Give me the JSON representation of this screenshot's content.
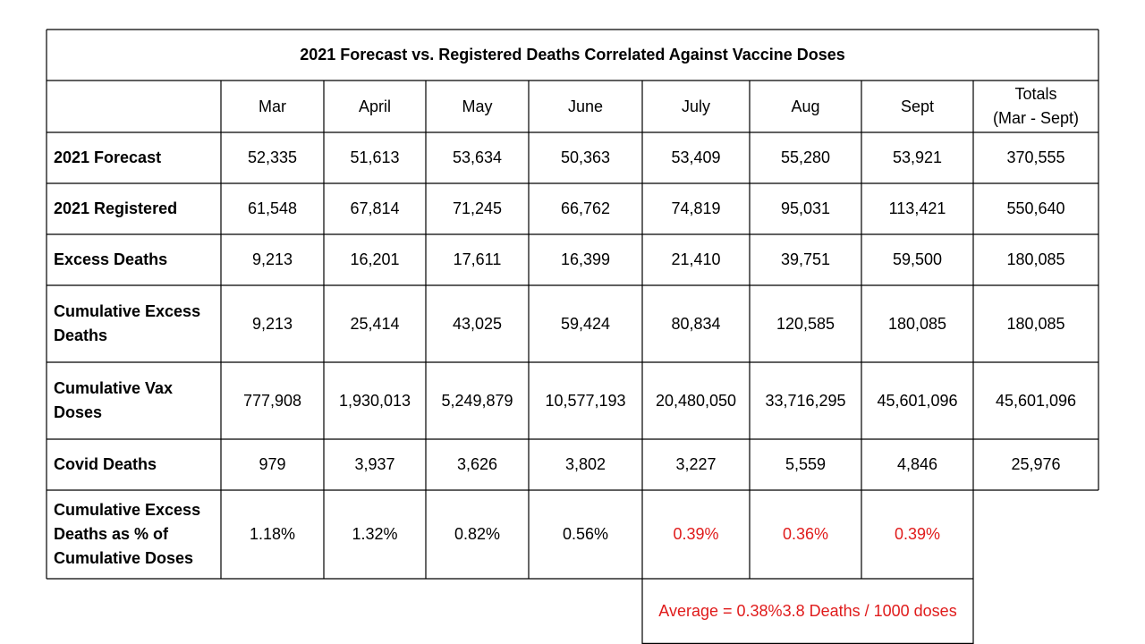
{
  "chart_data": {
    "type": "table",
    "title": "2021 Forecast vs. Registered Deaths Correlated Against Vaccine Doses",
    "columns": [
      "Mar",
      "April",
      "May",
      "June",
      "July",
      "Aug",
      "Sept",
      "Totals\n(Mar - Sept)"
    ],
    "rows": [
      {
        "label": "2021 Forecast",
        "values": [
          "52,335",
          "51,613",
          "53,634",
          "50,363",
          "53,409",
          "55,280",
          "53,921",
          "370,555"
        ]
      },
      {
        "label": "2021 Registered",
        "values": [
          "61,548",
          "67,814",
          "71,245",
          "66,762",
          "74,819",
          "95,031",
          "113,421",
          "550,640"
        ]
      },
      {
        "label": "Excess Deaths",
        "values": [
          "9,213",
          "16,201",
          "17,611",
          "16,399",
          "21,410",
          "39,751",
          "59,500",
          "180,085"
        ]
      },
      {
        "label": "Cumulative Excess\nDeaths",
        "values": [
          "9,213",
          "25,414",
          "43,025",
          "59,424",
          "80,834",
          "120,585",
          "180,085",
          "180,085"
        ]
      },
      {
        "label": "Cumulative Vax\nDoses",
        "values": [
          "777,908",
          "1,930,013",
          "5,249,879",
          "10,577,193",
          "20,480,050",
          "33,716,295",
          "45,601,096",
          "45,601,096"
        ]
      },
      {
        "label": "Covid Deaths",
        "values": [
          "979",
          "3,937",
          "3,626",
          "3,802",
          "3,227",
          "5,559",
          "4,846",
          "25,976"
        ]
      },
      {
        "label": "Cumulative Excess\nDeaths as % of\nCumulative Doses",
        "values": [
          "1.18%",
          "1.32%",
          "0.82%",
          "0.56%",
          "0.39%",
          "0.36%",
          "0.39%"
        ],
        "highlighted": [
          false,
          false,
          false,
          false,
          true,
          true,
          true
        ]
      }
    ],
    "summary": {
      "line1": "Average = 0.38%",
      "line2": "3.8 Deaths / 1000 doses"
    },
    "highlight_color": "#e01b1b"
  }
}
